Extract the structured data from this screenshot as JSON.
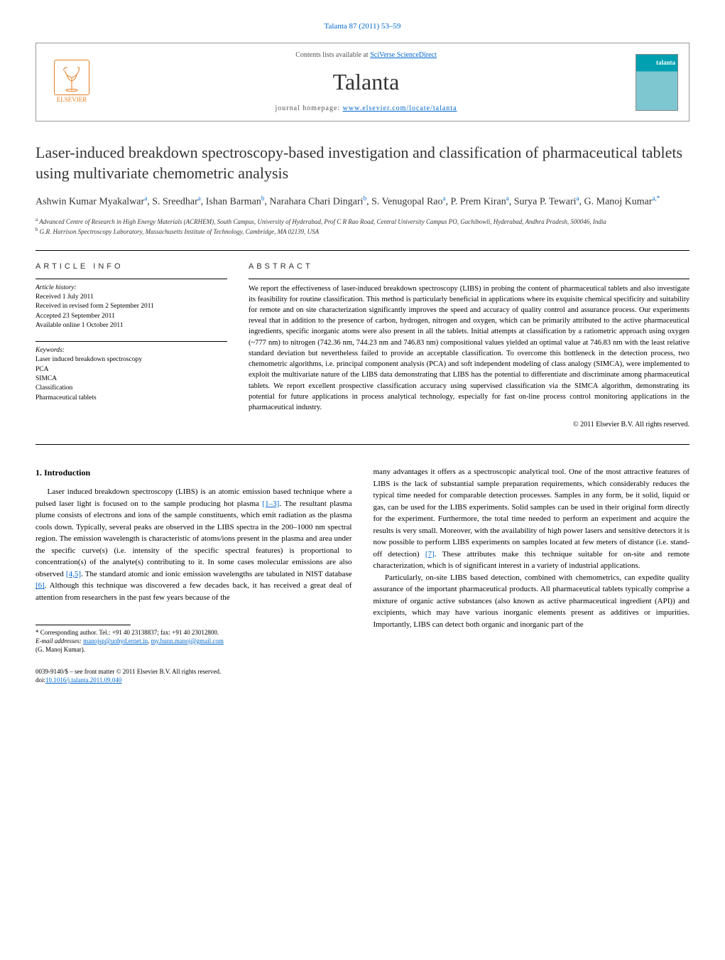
{
  "citation": "Talanta 87 (2011) 53–59",
  "header": {
    "contents_line_prefix": "Contents lists available at ",
    "contents_line_link": "SciVerse ScienceDirect",
    "journal_name": "Talanta",
    "homepage_prefix": "journal homepage: ",
    "homepage_link": "www.elsevier.com/locate/talanta",
    "publisher_label": "ELSEVIER",
    "cover_label": "talanta"
  },
  "title": "Laser-induced breakdown spectroscopy-based investigation and classification of pharmaceutical tablets using multivariate chemometric analysis",
  "authors": [
    {
      "name": "Ashwin Kumar Myakalwar",
      "affil": "a"
    },
    {
      "name": "S. Sreedhar",
      "affil": "a"
    },
    {
      "name": "Ishan Barman",
      "affil": "b"
    },
    {
      "name": "Narahara Chari Dingari",
      "affil": "b"
    },
    {
      "name": "S. Venugopal Rao",
      "affil": "a"
    },
    {
      "name": "P. Prem Kiran",
      "affil": "a"
    },
    {
      "name": "Surya P. Tewari",
      "affil": "a"
    },
    {
      "name": "G. Manoj Kumar",
      "affil": "a,*"
    }
  ],
  "affiliations": {
    "a": "Advanced Centre of Research in High Energy Materials (ACRHEM), South Campus, University of Hyderabad, Prof C R Rao Road, Central University Campus PO, Gachibowli, Hyderabad, Andhra Pradesh, 500046, India",
    "b": "G.R. Harrison Spectroscopy Laboratory, Massachusetts Institute of Technology, Cambridge, MA 02139, USA"
  },
  "article_info": {
    "heading": "ARTICLE INFO",
    "history_label": "Article history:",
    "received": "Received 1 July 2011",
    "revised": "Received in revised form 2 September 2011",
    "accepted": "Accepted 23 September 2011",
    "online": "Available online 1 October 2011",
    "keywords_label": "Keywords:",
    "keywords": [
      "Laser induced breakdown spectroscopy",
      "PCA",
      "SIMCA",
      "Classification",
      "Pharmaceutical tablets"
    ]
  },
  "abstract": {
    "heading": "ABSTRACT",
    "text": "We report the effectiveness of laser-induced breakdown spectroscopy (LIBS) in probing the content of pharmaceutical tablets and also investigate its feasibility for routine classification. This method is particularly beneficial in applications where its exquisite chemical specificity and suitability for remote and on site characterization significantly improves the speed and accuracy of quality control and assurance process. Our experiments reveal that in addition to the presence of carbon, hydrogen, nitrogen and oxygen, which can be primarily attributed to the active pharmaceutical ingredients, specific inorganic atoms were also present in all the tablets. Initial attempts at classification by a ratiometric approach using oxygen (~777 nm) to nitrogen (742.36 nm, 744.23 nm and 746.83 nm) compositional values yielded an optimal value at 746.83 nm with the least relative standard deviation but nevertheless failed to provide an acceptable classification. To overcome this bottleneck in the detection process, two chemometric algorithms, i.e. principal component analysis (PCA) and soft independent modeling of class analogy (SIMCA), were implemented to exploit the multivariate nature of the LIBS data demonstrating that LIBS has the potential to differentiate and discriminate among pharmaceutical tablets. We report excellent prospective classification accuracy using supervised classification via the SIMCA algorithm, demonstrating its potential for future applications in process analytical technology, especially for fast on-line process control monitoring applications in the pharmaceutical industry.",
    "copyright": "© 2011 Elsevier B.V. All rights reserved."
  },
  "intro": {
    "heading": "1. Introduction",
    "col1_p1": "Laser induced breakdown spectroscopy (LIBS) is an atomic emission based technique where a pulsed laser light is focused on to the sample producing hot plasma [1–3]. The resultant plasma plume consists of electrons and ions of the sample constituents, which emit radiation as the plasma cools down. Typically, several peaks are observed in the LIBS spectra in the 200–1000 nm spectral region. The emission wavelength is characteristic of atoms/ions present in the plasma and area under the specific curve(s) (i.e. intensity of the specific spectral features) is proportional to concentration(s) of the analyte(s) contributing to it. In some cases molecular emissions are also observed [4,5]. The standard atomic and ionic emission wavelengths are tabulated in NIST database [6]. Although this technique was discovered a few decades back, it has received a great deal of attention from researchers in the past few years because of the",
    "col2_p1": "many advantages it offers as a spectroscopic analytical tool. One of the most attractive features of LIBS is the lack of substantial sample preparation requirements, which considerably reduces the typical time needed for comparable detection processes. Samples in any form, be it solid, liquid or gas, can be used for the LIBS experiments. Solid samples can be used in their original form directly for the experiment. Furthermore, the total time needed to perform an experiment and acquire the results is very small. Moreover, with the availability of high power lasers and sensitive detectors it is now possible to perform LIBS experiments on samples located at few meters of distance (i.e. stand-off detection) [7]. These attributes make this technique suitable for on-site and remote characterization, which is of significant interest in a variety of industrial applications.",
    "col2_p2": "Particularly, on-site LIBS based detection, combined with chemometrics, can expedite quality assurance of the important pharmaceutical products. All pharmaceutical tablets typically comprise a mixture of organic active substances (also known as active pharmaceutical ingredient (API)) and excipients, which may have various inorganic elements present as additives or impurities. Importantly, LIBS can detect both organic and inorganic part of the",
    "refs": {
      "r1": "[1–3]",
      "r2": "[4,5]",
      "r3": "[6]",
      "r4": "[7]"
    }
  },
  "footnotes": {
    "corresponding": "* Corresponding author. Tel.: +91 40 23138837; fax: +91 40 23012800.",
    "email_label": "E-mail addresses: ",
    "email1": "manojsp@uohyd.ernet.in",
    "email_sep": ", ",
    "email2": "my.hunn.manoj@gmail.com",
    "email_owner": "(G. Manoj Kumar)."
  },
  "footer": {
    "issn_line": "0039-9140/$ – see front matter © 2011 Elsevier B.V. All rights reserved.",
    "doi_prefix": "doi:",
    "doi": "10.1016/j.talanta.2011.09.040"
  },
  "colors": {
    "link": "#0066cc",
    "elsevier": "#e67e22",
    "cover_top": "#00a0b0"
  }
}
